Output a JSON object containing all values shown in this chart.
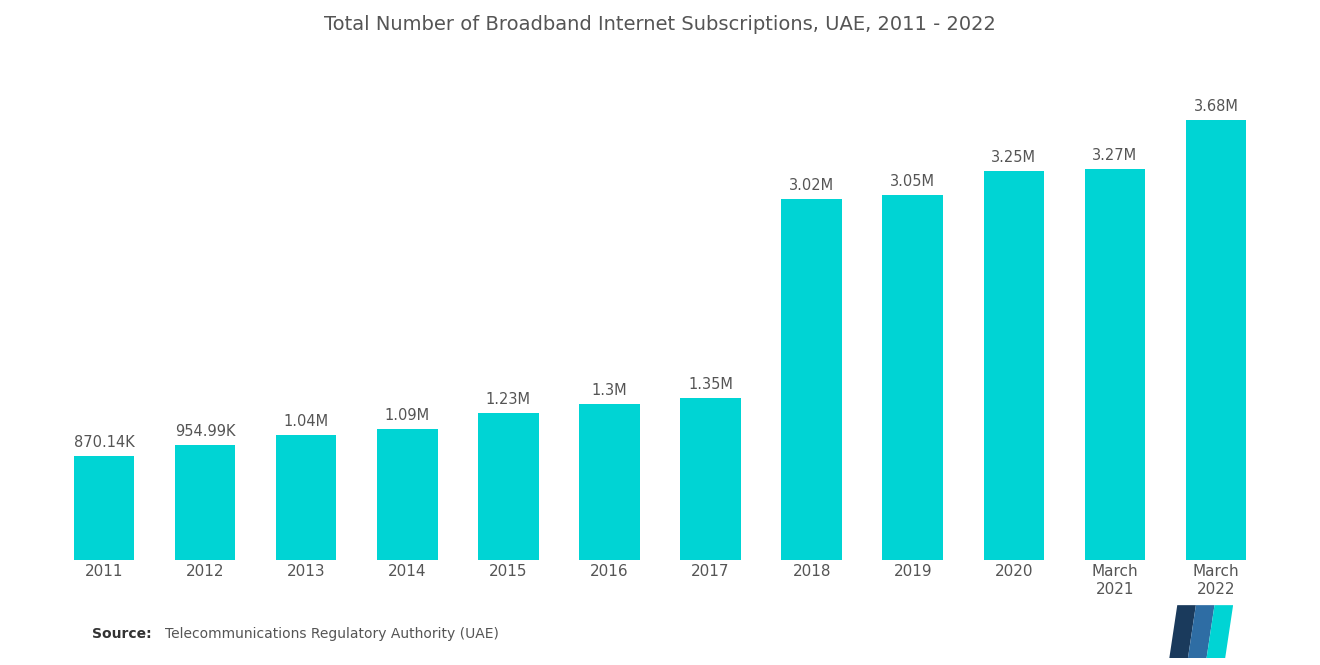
{
  "title": "Total Number of Broadband Internet Subscriptions, UAE, 2011 - 2022",
  "categories": [
    "2011",
    "2012",
    "2013",
    "2014",
    "2015",
    "2016",
    "2017",
    "2018",
    "2019",
    "2020",
    "March\n2021",
    "March\n2022"
  ],
  "values": [
    870140,
    954990,
    1040000,
    1090000,
    1230000,
    1300000,
    1350000,
    3020000,
    3050000,
    3250000,
    3270000,
    3680000
  ],
  "labels": [
    "870.14K",
    "954.99K",
    "1.04M",
    "1.09M",
    "1.23M",
    "1.3M",
    "1.35M",
    "3.02M",
    "3.05M",
    "3.25M",
    "3.27M",
    "3.68M"
  ],
  "bar_color": "#00D4D4",
  "background_color": "#ffffff",
  "title_color": "#555555",
  "label_color": "#555555",
  "source_text": "Telecommunications Regulatory Authority (UAE)",
  "source_label": "Source:",
  "ylim": [
    0,
    4200000
  ],
  "logo_left_color": "#1a3a5c",
  "logo_right_color": "#2e6da4",
  "logo_teal_color": "#00D4D4"
}
